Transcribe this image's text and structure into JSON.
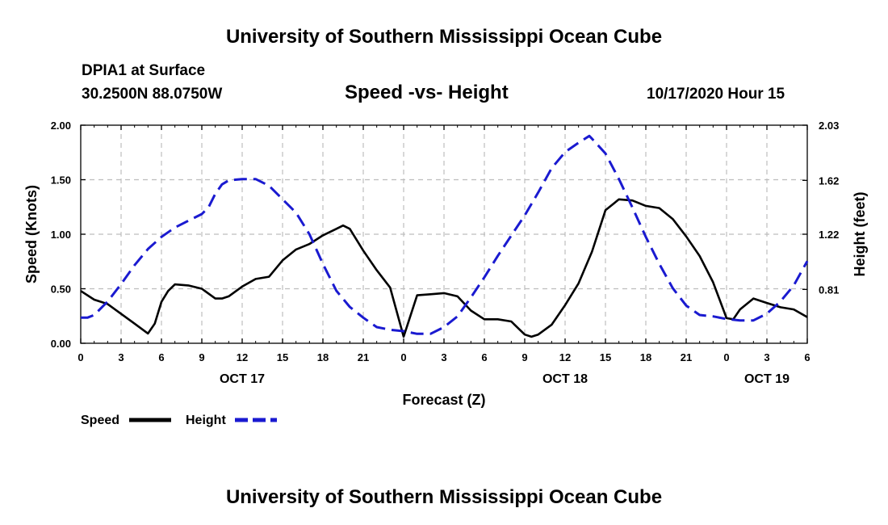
{
  "header": {
    "title": "University of Southern Mississippi Ocean Cube",
    "station": "DPIA1 at Surface",
    "coords": "30.2500N 88.0750W",
    "chart_title": "Speed -vs- Height",
    "timestamp": "10/17/2020 Hour 15"
  },
  "footer": {
    "title": "University of Southern Mississippi Ocean Cube"
  },
  "colors": {
    "speed": "#000000",
    "height": "#1a1ad0",
    "grid": "#bdbdbd"
  },
  "chart_data": {
    "type": "line",
    "title": "Speed -vs- Height",
    "xlabel": "Forecast (Z)",
    "ylabel": "Speed (Knots)",
    "y2label": "Height (feet)",
    "xlim": [
      0,
      54
    ],
    "ylim": [
      0,
      2.0
    ],
    "y2lim": [
      0.41,
      2.03
    ],
    "x_ticks": [
      0,
      3,
      6,
      9,
      12,
      15,
      18,
      21,
      24,
      27,
      30,
      33,
      36,
      39,
      42,
      45,
      48,
      51,
      54
    ],
    "x_tick_labels": [
      "0",
      "3",
      "6",
      "9",
      "12",
      "15",
      "18",
      "21",
      "0",
      "3",
      "6",
      "9",
      "12",
      "15",
      "18",
      "21",
      "0",
      "3",
      "6"
    ],
    "y_ticks": [
      0,
      0.5,
      1.0,
      1.5,
      2.0
    ],
    "y_tick_labels": [
      "0.00",
      "0.50",
      "1.00",
      "1.50",
      "2.00"
    ],
    "y2_ticks": [
      0.81,
      1.22,
      1.62,
      2.03
    ],
    "y2_tick_labels": [
      "0.81",
      "1.22",
      "1.62",
      "2.03"
    ],
    "date_labels": [
      {
        "x": 12,
        "label": "OCT 17"
      },
      {
        "x": 36,
        "label": "OCT 18"
      },
      {
        "x": 51,
        "label": "OCT 19"
      }
    ],
    "grid": true,
    "legend": [
      {
        "name": "Speed",
        "style": "solid"
      },
      {
        "name": "Height",
        "style": "dashed"
      }
    ],
    "series": [
      {
        "name": "Speed",
        "axis": "left",
        "x": [
          0,
          1,
          2,
          3,
          4,
          5,
          5.5,
          6,
          6.5,
          7,
          8,
          9,
          10,
          10.5,
          11,
          12,
          13,
          14,
          15,
          16,
          17,
          18,
          19,
          19.5,
          20,
          21,
          22,
          23,
          24,
          25,
          26,
          27,
          28,
          29,
          30,
          31,
          32,
          33,
          33.5,
          34,
          35,
          36,
          37,
          38,
          39,
          40,
          41,
          42,
          43,
          44,
          45,
          46,
          47,
          48,
          48.5,
          49,
          50,
          51,
          52,
          53,
          54
        ],
        "values": [
          0.48,
          0.4,
          0.36,
          0.27,
          0.18,
          0.09,
          0.18,
          0.38,
          0.48,
          0.54,
          0.53,
          0.5,
          0.41,
          0.41,
          0.43,
          0.52,
          0.59,
          0.61,
          0.76,
          0.86,
          0.91,
          0.99,
          1.05,
          1.08,
          1.05,
          0.85,
          0.67,
          0.51,
          0.06,
          0.44,
          0.45,
          0.46,
          0.43,
          0.3,
          0.22,
          0.22,
          0.2,
          0.08,
          0.06,
          0.08,
          0.17,
          0.35,
          0.55,
          0.84,
          1.22,
          1.32,
          1.31,
          1.26,
          1.24,
          1.14,
          0.98,
          0.8,
          0.56,
          0.23,
          0.22,
          0.31,
          0.41,
          0.37,
          0.33,
          0.31,
          0.24
        ]
      },
      {
        "name": "Height",
        "axis": "right",
        "x": [
          0,
          0.5,
          1,
          2,
          3,
          4,
          5,
          6,
          7,
          8,
          9,
          9.5,
          10,
          10.5,
          11,
          12,
          13,
          14,
          15,
          16,
          17,
          18,
          19,
          20,
          21,
          22,
          23,
          24,
          25,
          26,
          27,
          28,
          29,
          30,
          31,
          32,
          33,
          34,
          35,
          36,
          37,
          37.8,
          38,
          39,
          40,
          41,
          42,
          43,
          44,
          45,
          46,
          47,
          48,
          49,
          50,
          51,
          52,
          53,
          54
        ],
        "values": [
          0.6,
          0.6,
          0.62,
          0.72,
          0.85,
          0.99,
          1.11,
          1.2,
          1.27,
          1.32,
          1.37,
          1.42,
          1.52,
          1.59,
          1.62,
          1.63,
          1.63,
          1.58,
          1.48,
          1.38,
          1.22,
          1.0,
          0.8,
          0.68,
          0.6,
          0.53,
          0.51,
          0.5,
          0.48,
          0.48,
          0.53,
          0.61,
          0.75,
          0.9,
          1.06,
          1.21,
          1.36,
          1.53,
          1.71,
          1.83,
          1.9,
          1.95,
          1.93,
          1.82,
          1.63,
          1.42,
          1.2,
          1.0,
          0.82,
          0.69,
          0.62,
          0.61,
          0.59,
          0.58,
          0.58,
          0.63,
          0.72,
          0.84,
          1.02
        ]
      }
    ]
  }
}
